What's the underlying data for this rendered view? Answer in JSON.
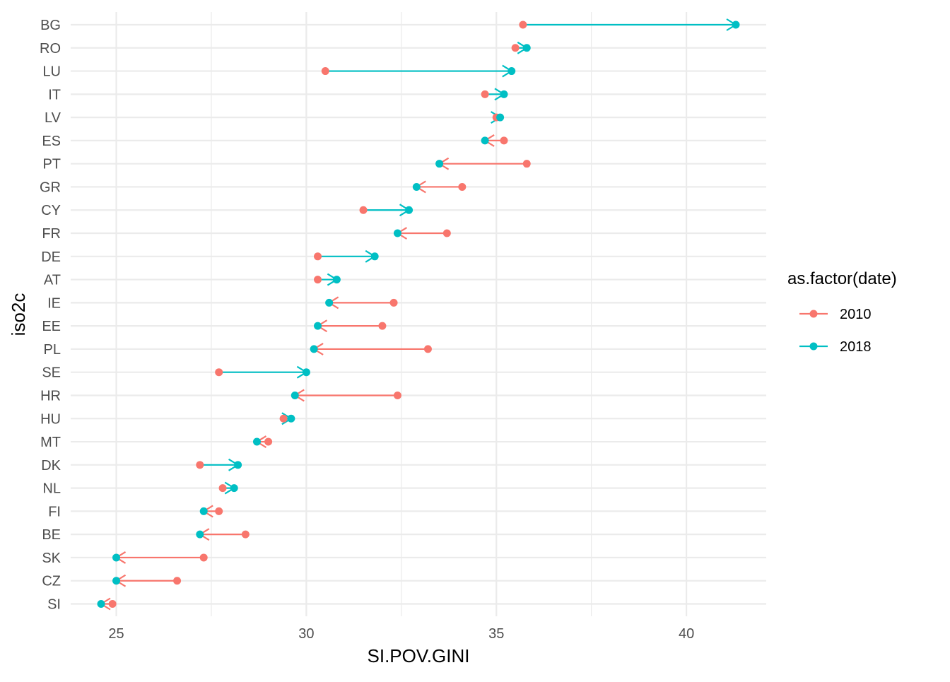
{
  "chart_data": {
    "type": "arrow_dot",
    "xlabel": "SI.POV.GINI",
    "ylabel": "iso2c",
    "xlim": [
      23.8,
      42.1
    ],
    "x_ticks": [
      25,
      30,
      35,
      40
    ],
    "grid": true,
    "legend": {
      "title": "as.factor(date)",
      "placement": "right",
      "items": [
        {
          "name": "2010",
          "color": "#F8766D"
        },
        {
          "name": "2018",
          "color": "#00BFC4"
        }
      ]
    },
    "series": [
      {
        "name": "2010",
        "color": "#F8766D"
      },
      {
        "name": "2018",
        "color": "#00BFC4"
      }
    ],
    "categories": [
      "BG",
      "RO",
      "LU",
      "IT",
      "LV",
      "ES",
      "PT",
      "GR",
      "CY",
      "FR",
      "DE",
      "AT",
      "IE",
      "EE",
      "PL",
      "SE",
      "HR",
      "HU",
      "MT",
      "DK",
      "NL",
      "FI",
      "BE",
      "SK",
      "CZ",
      "SI"
    ],
    "values_2010": [
      35.7,
      35.5,
      30.5,
      34.7,
      35.0,
      35.2,
      35.8,
      34.1,
      31.5,
      33.7,
      30.3,
      30.3,
      32.3,
      32.0,
      33.2,
      27.7,
      32.4,
      29.4,
      29.0,
      27.2,
      27.8,
      27.7,
      28.4,
      27.3,
      26.6,
      24.9
    ],
    "values_2018": [
      41.3,
      35.8,
      35.4,
      35.2,
      35.1,
      34.7,
      33.5,
      32.9,
      32.7,
      32.4,
      31.8,
      30.8,
      30.6,
      30.3,
      30.2,
      30.0,
      29.7,
      29.6,
      28.7,
      28.2,
      28.1,
      27.3,
      27.2,
      25.0,
      25.0,
      24.6
    ]
  }
}
